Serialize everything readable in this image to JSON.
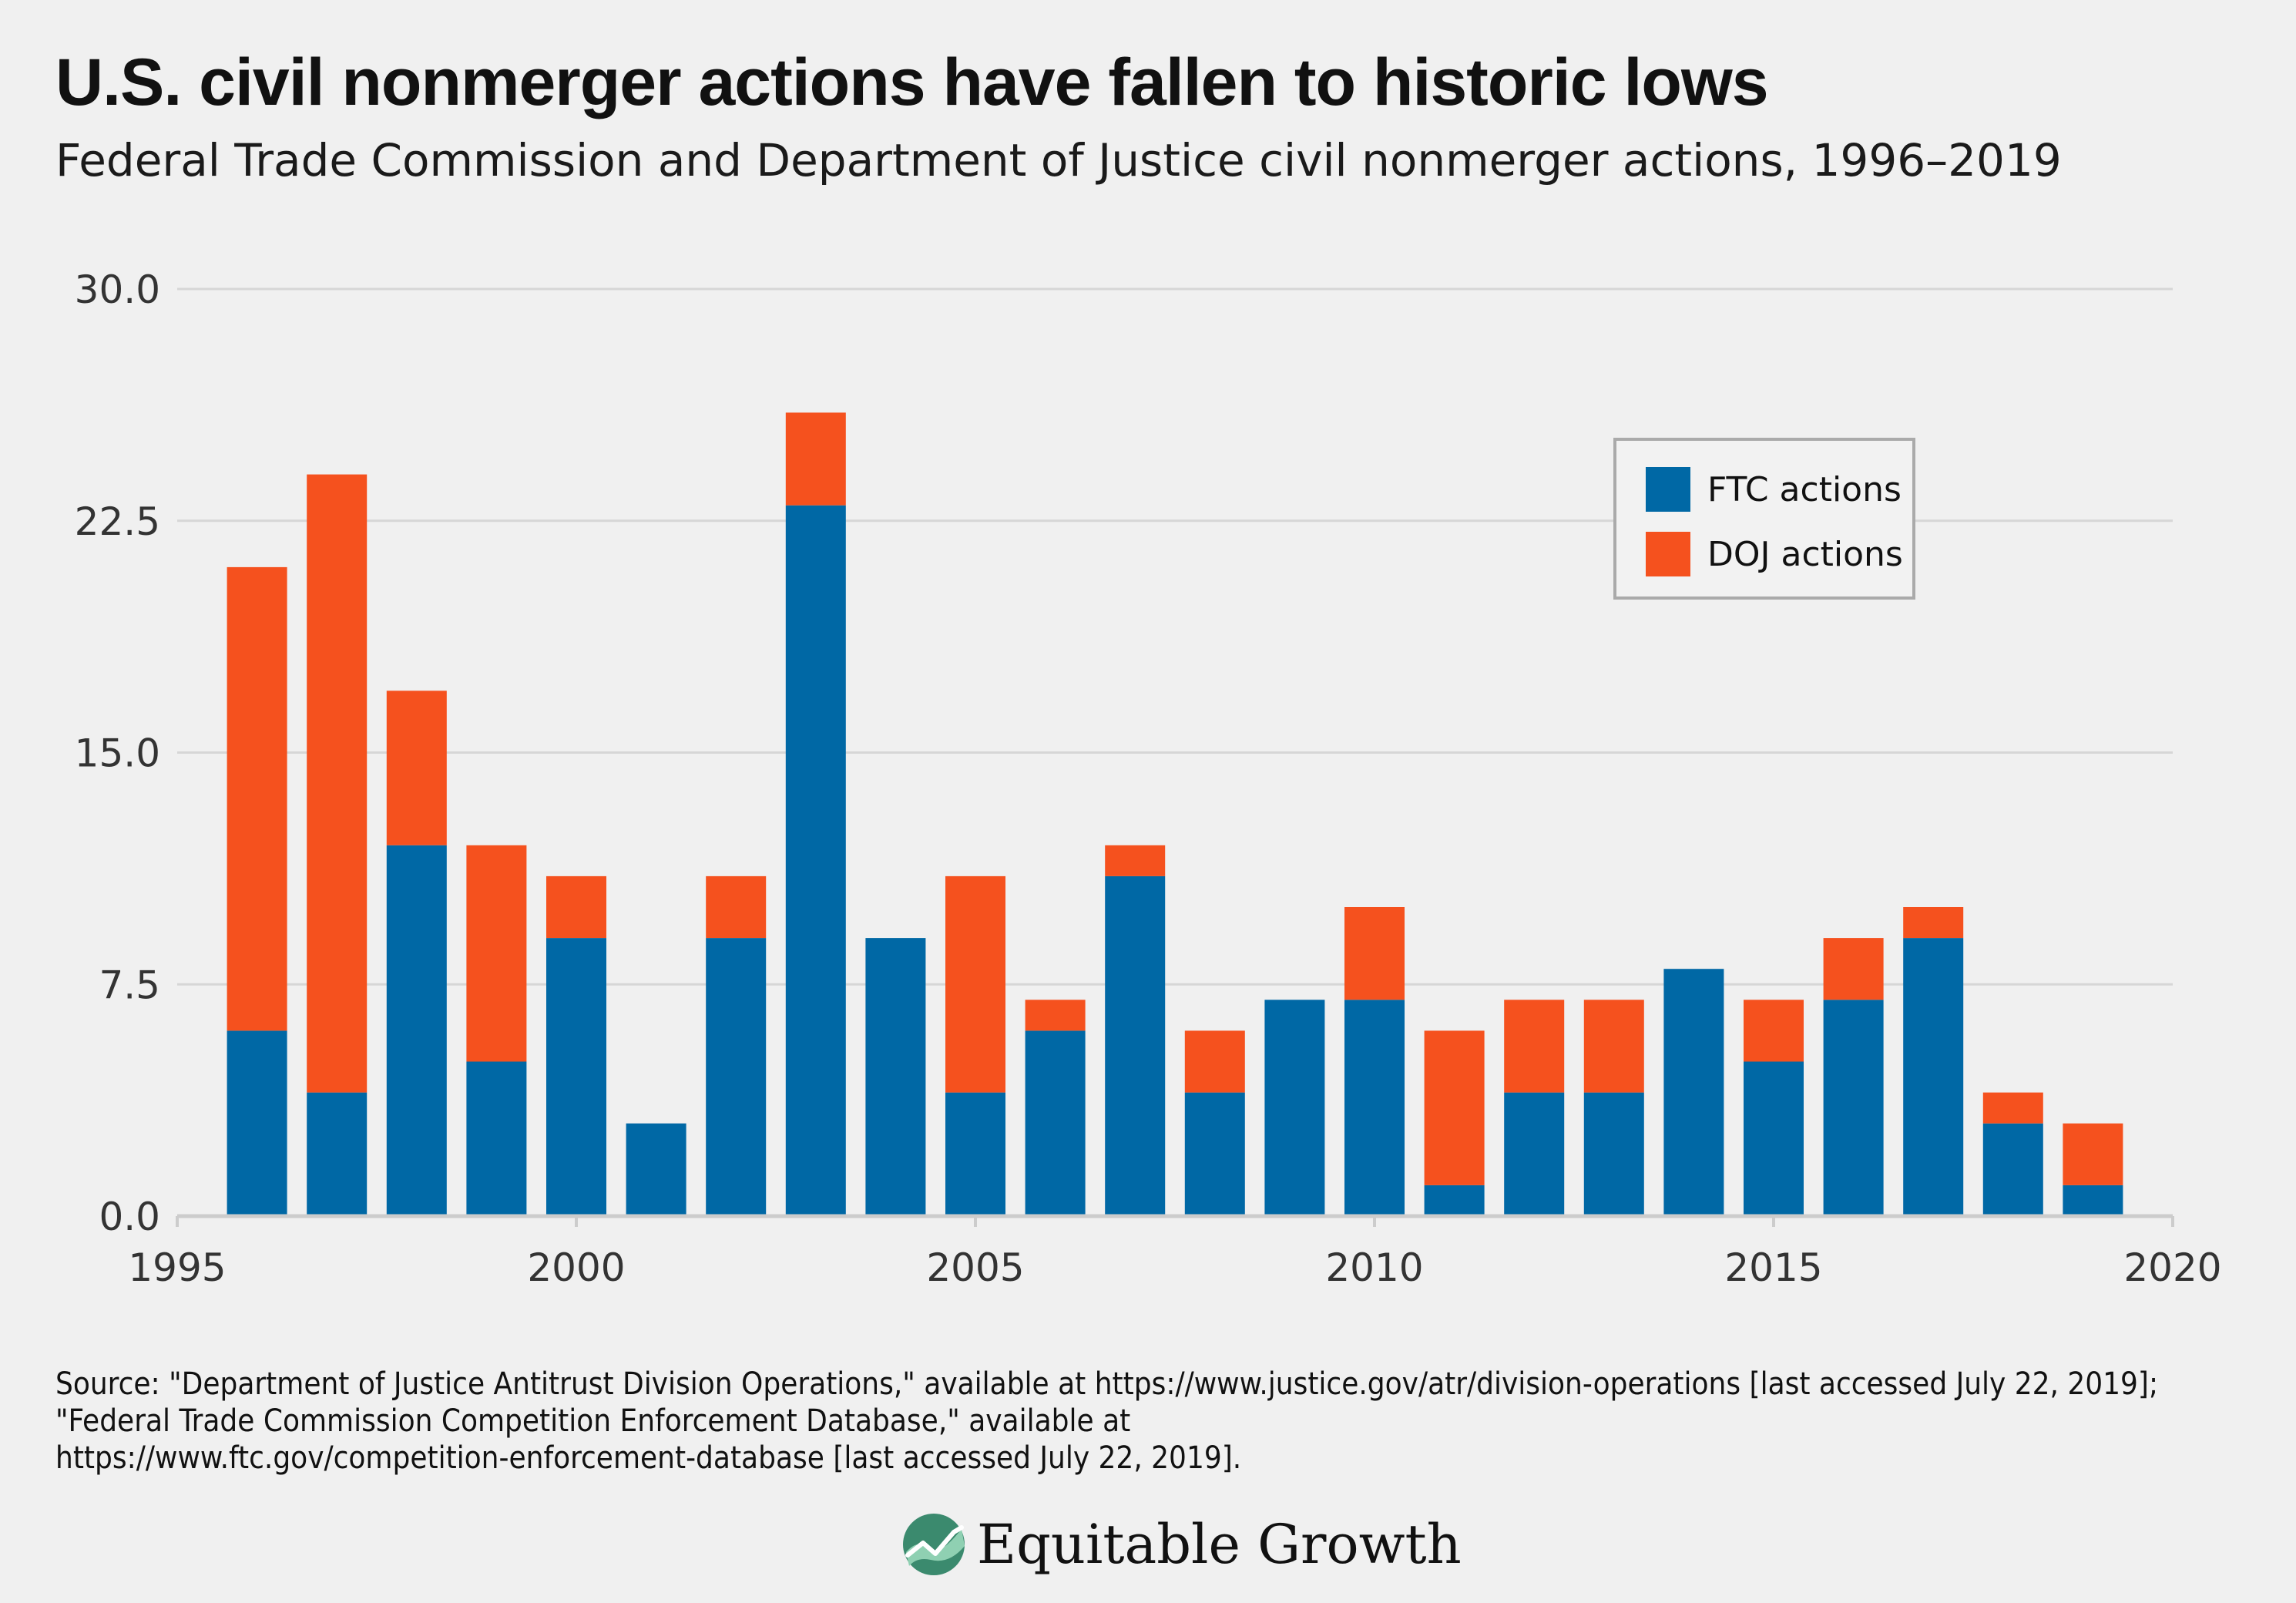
{
  "header": {
    "title": "U.S. civil nonmerger actions have fallen to historic lows",
    "subtitle": "Federal Trade Commission and Department of Justice civil nonmerger actions, 1996–2019"
  },
  "chart_data": {
    "type": "bar",
    "stacked": true,
    "x": [
      1996,
      1997,
      1998,
      1999,
      2000,
      2001,
      2002,
      2003,
      2004,
      2005,
      2006,
      2007,
      2008,
      2009,
      2010,
      2011,
      2012,
      2013,
      2014,
      2015,
      2016,
      2017,
      2018,
      2019
    ],
    "series": [
      {
        "name": "FTC actions",
        "color": "#0068a5",
        "values": [
          6,
          4,
          12,
          5,
          9,
          3,
          9,
          23,
          9,
          4,
          6,
          11,
          4,
          7,
          7,
          1,
          4,
          4,
          8,
          5,
          7,
          9,
          3,
          1
        ]
      },
      {
        "name": "DOJ actions",
        "color": "#f5511e",
        "values": [
          15,
          20,
          5,
          7,
          2,
          0,
          2,
          3,
          0,
          7,
          1,
          1,
          2,
          0,
          3,
          5,
          3,
          3,
          0,
          2,
          2,
          1,
          1,
          2
        ]
      }
    ],
    "xlim": [
      1995,
      2020
    ],
    "ylim": [
      0,
      30
    ],
    "xticks": [
      "1995",
      "2000",
      "2005",
      "2010",
      "2015",
      "2020"
    ],
    "yticks": [
      "0.0",
      "7.5",
      "15.0",
      "22.5",
      "30.0"
    ],
    "grid": true,
    "legend": "top-right"
  },
  "source": "Source: \"Department of Justice Antitrust Division Operations,\" available at https://www.justice.gov/atr/division-operations [last accessed July 22, 2019]; \"Federal Trade Commission Competition Enforcement Database,\" available at\nhttps://www.ftc.gov/competition-enforcement-database [last accessed July 22, 2019].",
  "brand": {
    "name": "Equitable Growth",
    "logo_icon": "growth-chart-leaf-icon"
  }
}
